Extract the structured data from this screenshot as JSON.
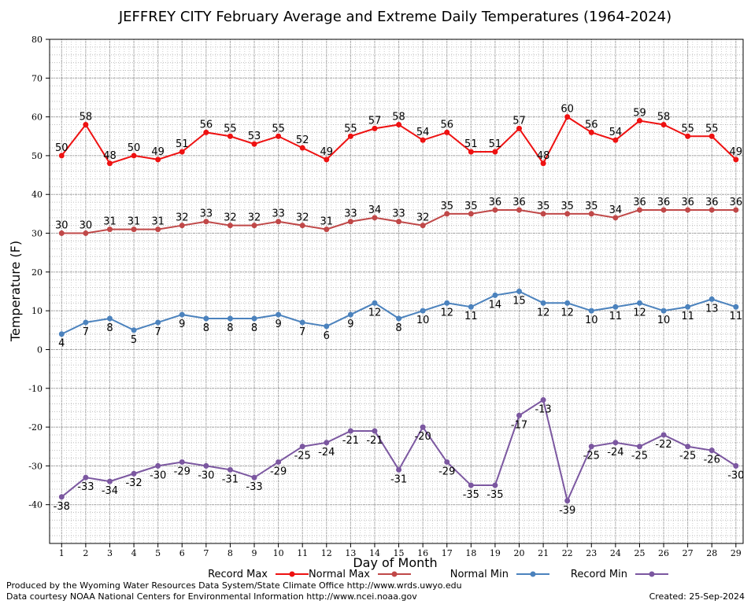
{
  "chart_data": {
    "type": "line",
    "title": "JEFFREY CITY February Average and Extreme Daily Temperatures (1964-2024)",
    "xlabel": "Day of Month",
    "ylabel": "Temperature (F)",
    "x": [
      1,
      2,
      3,
      4,
      5,
      6,
      7,
      8,
      9,
      10,
      11,
      12,
      13,
      14,
      15,
      16,
      17,
      18,
      19,
      20,
      21,
      22,
      23,
      24,
      25,
      26,
      27,
      28,
      29
    ],
    "xlim": [
      0.5,
      29.3
    ],
    "ylim": [
      -50,
      80
    ],
    "yticks": [
      80,
      70,
      60,
      50,
      40,
      30,
      20,
      10,
      0,
      -10,
      -20,
      -30,
      -40
    ],
    "grid": true,
    "legend_position": "bottom",
    "series": [
      {
        "name": "Record Max",
        "color": "#ee1111",
        "label_pos": "above",
        "values": [
          50,
          58,
          48,
          50,
          49,
          51,
          56,
          55,
          53,
          55,
          52,
          49,
          55,
          57,
          58,
          54,
          56,
          51,
          51,
          57,
          48,
          60,
          56,
          54,
          59,
          58,
          55,
          55,
          49
        ]
      },
      {
        "name": "Normal Max",
        "color": "#c04848",
        "label_pos": "above",
        "values": [
          30,
          30,
          31,
          31,
          31,
          32,
          33,
          32,
          32,
          33,
          32,
          31,
          33,
          34,
          33,
          32,
          35,
          35,
          36,
          36,
          35,
          35,
          35,
          34,
          36,
          36,
          36,
          36,
          36
        ]
      },
      {
        "name": "Normal Min",
        "color": "#4b82bd",
        "label_pos": "below",
        "values": [
          4,
          7,
          8,
          5,
          7,
          9,
          8,
          8,
          8,
          9,
          7,
          6,
          9,
          12,
          8,
          10,
          12,
          11,
          14,
          15,
          12,
          12,
          10,
          11,
          12,
          10,
          11,
          13,
          11
        ]
      },
      {
        "name": "Record Min",
        "color": "#7b57a0",
        "label_pos": "below",
        "values": [
          -38,
          -33,
          -34,
          -32,
          -30,
          -29,
          -30,
          -31,
          -33,
          -29,
          -25,
          -24,
          -21,
          -21,
          -31,
          -20,
          -29,
          -35,
          -35,
          -17,
          -13,
          -39,
          -25,
          -24,
          -25,
          -22,
          -25,
          -26,
          -30
        ]
      }
    ]
  },
  "footer": {
    "credit_line1": "Produced by the Wyoming Water Resources Data System/State Climate Office http://www.wrds.uwyo.edu",
    "credit_line2": "Data courtesy NOAA National Centers for Environmental Information http://www.ncei.noaa.gov",
    "created": "Created:  25-Sep-2024"
  }
}
